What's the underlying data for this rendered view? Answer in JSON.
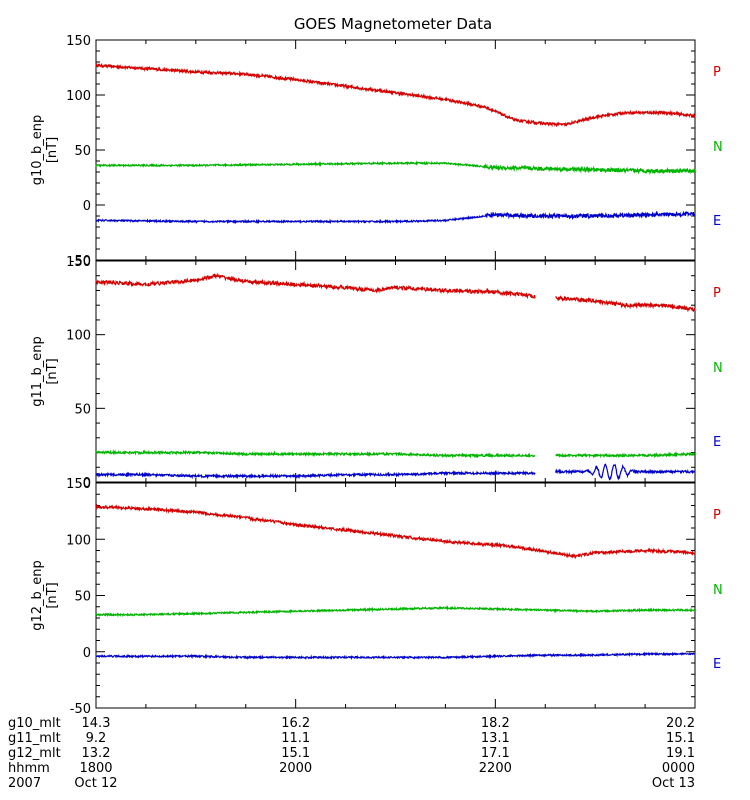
{
  "chart_data": {
    "type": "line",
    "title": "GOES Magnetometer Data",
    "colors": {
      "P": "#d40000",
      "N": "#00b400",
      "E": "#0000c8",
      "axis": "#000000"
    },
    "x_axis": {
      "unit": "hours since 2007 Oct 12 18:00 UT",
      "range": [
        0,
        6
      ],
      "major_ticks": [
        0,
        2,
        4,
        6
      ],
      "minor_step": 0.5
    },
    "annotation_rows": [
      {
        "label": "g10_mlt",
        "values": [
          "14.3",
          "16.2",
          "18.2",
          "20.2"
        ]
      },
      {
        "label": "g11_mlt",
        "values": [
          "9.2",
          "11.1",
          "13.1",
          "15.1"
        ]
      },
      {
        "label": "g12_mlt",
        "values": [
          "13.2",
          "15.1",
          "17.1",
          "19.1"
        ]
      },
      {
        "label": "hhmm",
        "values": [
          "1800",
          "2000",
          "2200",
          "0000"
        ]
      },
      {
        "label": "2007",
        "values": [
          "Oct 12",
          "",
          "",
          "Oct 13"
        ]
      }
    ],
    "panels": [
      {
        "ylabel": "g10_b_enp",
        "yunit": "[nT]",
        "ylim": [
          -50,
          150
        ],
        "yticks": [
          -50,
          0,
          50,
          100,
          150
        ],
        "legend": [
          "P",
          "N",
          "E"
        ],
        "series": [
          {
            "name": "P",
            "x": [
              0,
              0.5,
              1.0,
              1.5,
              2.0,
              2.5,
              3.0,
              3.5,
              3.9,
              4.2,
              4.5,
              4.7,
              5.0,
              5.3,
              5.7,
              6.0
            ],
            "values": [
              127,
              124,
              121,
              119,
              114,
              108,
              102,
              96,
              89,
              77,
              74,
              73,
              80,
              84,
              84,
              81
            ]
          },
          {
            "name": "N",
            "x": [
              0,
              1.0,
              2.0,
              3.0,
              3.5,
              4.0,
              4.5,
              5.0,
              5.5,
              6.0
            ],
            "values": [
              36,
              36,
              37,
              38,
              38,
              34,
              33,
              32,
              31,
              31
            ]
          },
          {
            "name": "E",
            "x": [
              0,
              1.0,
              2.0,
              3.0,
              3.5,
              4.0,
              4.5,
              5.0,
              5.5,
              6.0
            ],
            "values": [
              -14,
              -15,
              -15,
              -15,
              -14,
              -9,
              -10,
              -10,
              -9,
              -8
            ]
          }
        ]
      },
      {
        "ylabel": "g11_b_enp",
        "yunit": "[nT]",
        "ylim": [
          0,
          150
        ],
        "yticks": [
          0,
          50,
          100,
          150
        ],
        "legend": [
          "P",
          "N",
          "E"
        ],
        "gap": [
          4.4,
          4.6
        ],
        "series": [
          {
            "name": "P",
            "x": [
              0,
              0.5,
              1.0,
              1.2,
              1.5,
              2.0,
              2.5,
              2.8,
              3.0,
              3.5,
              4.0,
              4.4,
              4.6,
              5.0,
              5.3,
              5.7,
              6.0
            ],
            "values": [
              136,
              134,
              137,
              140,
              136,
              134,
              132,
              130,
              132,
              130,
              129,
              126,
              125,
              123,
              120,
              120,
              117
            ]
          },
          {
            "name": "N",
            "x": [
              0,
              0.5,
              1.0,
              1.5,
              2.0,
              2.5,
              3.0,
              3.5,
              4.0,
              4.4,
              4.6,
              5.0,
              5.5,
              6.0
            ],
            "values": [
              20,
              20,
              20,
              19,
              19,
              19,
              19,
              18,
              18,
              18,
              18,
              18,
              18,
              19
            ]
          },
          {
            "name": "E",
            "x": [
              0,
              0.5,
              1.0,
              1.5,
              2.0,
              2.5,
              3.0,
              3.5,
              4.0,
              4.4,
              4.6,
              5.0,
              5.5,
              6.0
            ],
            "values": [
              5,
              5,
              4,
              4,
              4,
              5,
              5,
              6,
              6,
              6,
              7,
              7,
              7,
              7
            ]
          }
        ]
      },
      {
        "ylabel": "g12_b_enp",
        "yunit": "[nT]",
        "ylim": [
          -50,
          150
        ],
        "yticks": [
          -50,
          0,
          50,
          100,
          150
        ],
        "legend": [
          "P",
          "N",
          "E"
        ],
        "series": [
          {
            "name": "P",
            "x": [
              0,
              0.5,
              1.0,
              1.5,
              2.0,
              2.5,
              3.0,
              3.5,
              4.0,
              4.2,
              4.5,
              4.8,
              5.0,
              5.5,
              6.0
            ],
            "values": [
              129,
              127,
              124,
              119,
              113,
              108,
              103,
              98,
              95,
              93,
              89,
              85,
              88,
              90,
              88
            ]
          },
          {
            "name": "N",
            "x": [
              0,
              0.5,
              1.0,
              1.5,
              2.0,
              2.5,
              3.0,
              3.5,
              4.0,
              4.5,
              5.0,
              5.5,
              6.0
            ],
            "values": [
              33,
              33,
              34,
              35,
              36,
              37,
              38,
              39,
              38,
              37,
              36,
              37,
              37
            ]
          },
          {
            "name": "E",
            "x": [
              0,
              0.5,
              1.0,
              1.5,
              2.0,
              2.5,
              3.0,
              3.5,
              4.0,
              4.5,
              5.0,
              5.5,
              6.0
            ],
            "values": [
              -4,
              -4,
              -4,
              -5,
              -5,
              -5,
              -5,
              -5,
              -4,
              -3,
              -3,
              -2,
              -2
            ]
          }
        ]
      }
    ]
  }
}
